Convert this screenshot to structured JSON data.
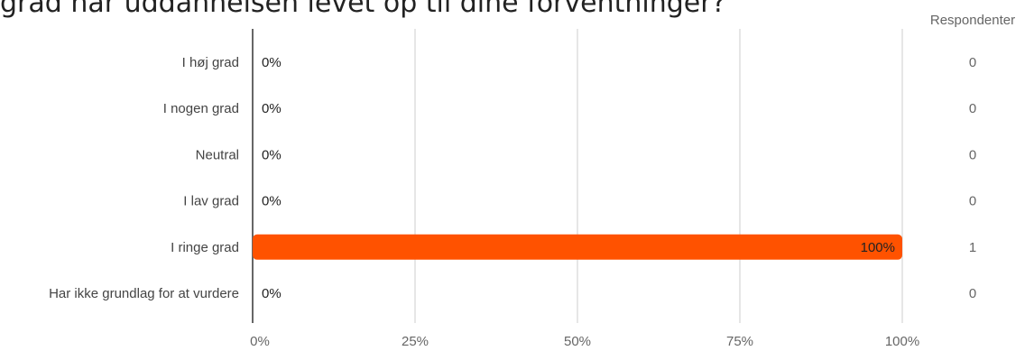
{
  "title": "grad har uddannelsen levet op til dine forventninger?",
  "respondents_header": "Respondenter",
  "colors": {
    "bar": "#ff5200",
    "grid": "#cccccc",
    "axis": "#666666",
    "label": "#444444",
    "muted": "#666666"
  },
  "chart_data": {
    "type": "bar",
    "orientation": "horizontal",
    "categories": [
      "I høj grad",
      "I nogen grad",
      "Neutral",
      "I lav grad",
      "I ringe grad",
      "Har ikke grundlag for at vurdere"
    ],
    "values": [
      0,
      0,
      0,
      0,
      100,
      0
    ],
    "value_labels": [
      "0%",
      "0%",
      "0%",
      "0%",
      "100%",
      "0%"
    ],
    "respondents": [
      0,
      0,
      0,
      0,
      1,
      0
    ],
    "xlim": [
      0,
      100
    ],
    "xticks": [
      "0%",
      "25%",
      "50%",
      "75%",
      "100%"
    ],
    "grid": true
  }
}
